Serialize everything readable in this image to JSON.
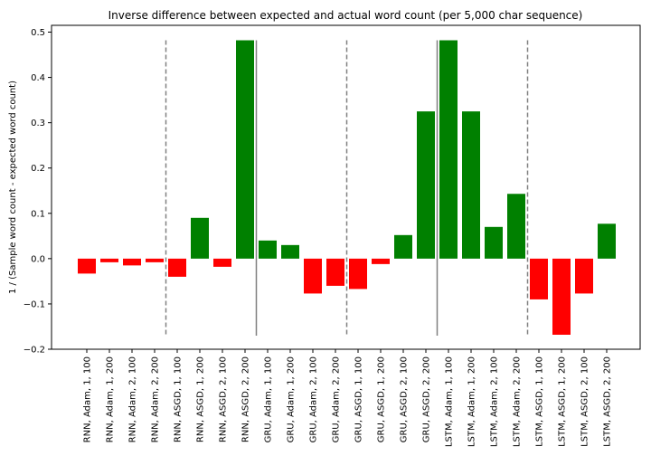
{
  "chart_data": {
    "type": "bar",
    "title": "Inverse difference between expected and actual word count (per 5,000 char sequence)",
    "xlabel": "",
    "ylabel": "1 / (Sample word count - expected word count)",
    "ylim": [
      -0.2,
      0.515
    ],
    "yticks": [
      -0.2,
      -0.1,
      0.0,
      0.1,
      0.2,
      0.3,
      0.4,
      0.5
    ],
    "ytick_labels": [
      "−0.2",
      "−0.1",
      "0.0",
      "0.1",
      "0.2",
      "0.3",
      "0.4",
      "0.5"
    ],
    "grid": false,
    "colors": {
      "positive": "#008000",
      "negative": "#ff0000",
      "divider": "#808080"
    },
    "categories": [
      "RNN, Adam, 1, 100",
      "RNN, Adam, 1, 200",
      "RNN, Adam, 2, 100",
      "RNN, Adam, 2, 200",
      "RNN, ASGD, 1, 100",
      "RNN, ASGD, 1, 200",
      "RNN, ASGD, 2, 100",
      "RNN, ASGD, 2, 200",
      "GRU, Adam, 1, 100",
      "GRU, Adam, 1, 200",
      "GRU, Adam, 2, 100",
      "GRU, Adam, 2, 200",
      "GRU, ASGD, 1, 100",
      "GRU, ASGD, 1, 200",
      "GRU, ASGD, 2, 100",
      "GRU, ASGD, 2, 200",
      "LSTM, Adam, 1, 100",
      "LSTM, Adam, 1, 200",
      "LSTM, Adam, 2, 100",
      "LSTM, Adam, 2, 200",
      "LSTM, ASGD, 1, 100",
      "LSTM, ASGD, 1, 200",
      "LSTM, ASGD, 2, 100",
      "LSTM, ASGD, 2, 200"
    ],
    "values": [
      -0.033,
      -0.008,
      -0.015,
      -0.008,
      -0.04,
      0.09,
      -0.018,
      0.482,
      0.04,
      0.03,
      -0.077,
      -0.06,
      -0.067,
      -0.012,
      0.052,
      0.325,
      0.482,
      0.325,
      0.07,
      0.143,
      -0.09,
      -0.168,
      -0.077,
      0.077
    ],
    "dividers": [
      {
        "after_index": 3,
        "style": "dashed",
        "ymin": -0.17,
        "ymax": 0.482
      },
      {
        "after_index": 7,
        "style": "solid",
        "ymin": -0.17,
        "ymax": 0.482
      },
      {
        "after_index": 11,
        "style": "dashed",
        "ymin": -0.17,
        "ymax": 0.482
      },
      {
        "after_index": 15,
        "style": "solid",
        "ymin": -0.17,
        "ymax": 0.482
      },
      {
        "after_index": 19,
        "style": "dashed",
        "ymin": -0.17,
        "ymax": 0.482
      }
    ]
  }
}
